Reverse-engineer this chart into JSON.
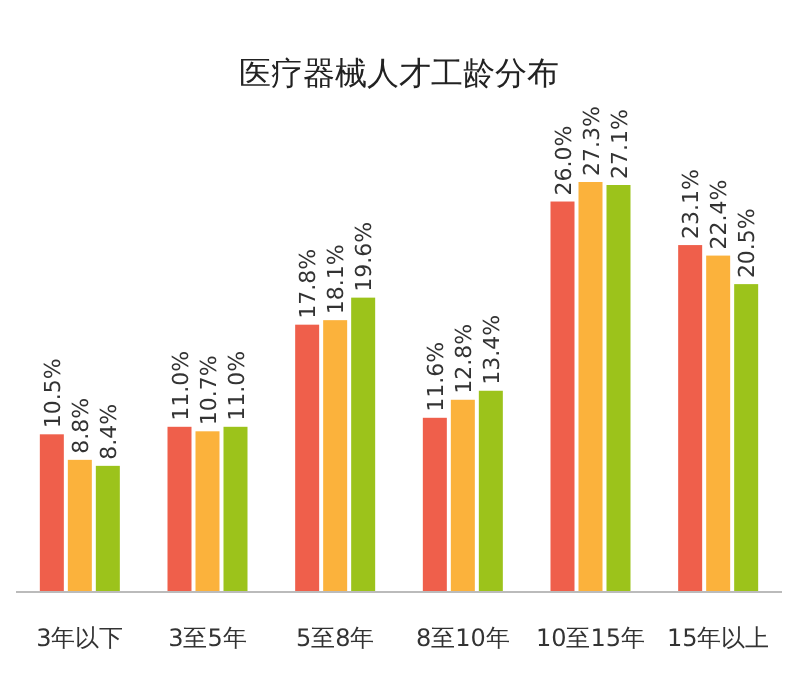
{
  "chart_data": {
    "type": "bar",
    "title": "医疗器械人才工龄分布",
    "categories": [
      "3年以下",
      "3至5年",
      "5至8年",
      "8至10年",
      "10至15年",
      "15年以上"
    ],
    "series": [
      {
        "color": "#ef5f4b",
        "values": [
          10.5,
          11.0,
          17.8,
          11.6,
          26.0,
          23.1
        ],
        "value_labels": [
          "10.5%",
          "11.0%",
          "17.8%",
          "11.6%",
          "26.0%",
          "23.1%"
        ]
      },
      {
        "color": "#fbb23c",
        "values": [
          8.8,
          10.7,
          18.1,
          12.8,
          27.3,
          22.4
        ],
        "value_labels": [
          "8.8%",
          "10.7%",
          "18.1%",
          "12.8%",
          "27.3%",
          "22.4%"
        ]
      },
      {
        "color": "#9cc31b",
        "values": [
          8.4,
          11.0,
          19.6,
          13.4,
          27.1,
          20.5
        ],
        "value_labels": [
          "8.4%",
          "11.0%",
          "19.6%",
          "13.4%",
          "27.1%",
          "20.5%"
        ]
      }
    ]
  }
}
